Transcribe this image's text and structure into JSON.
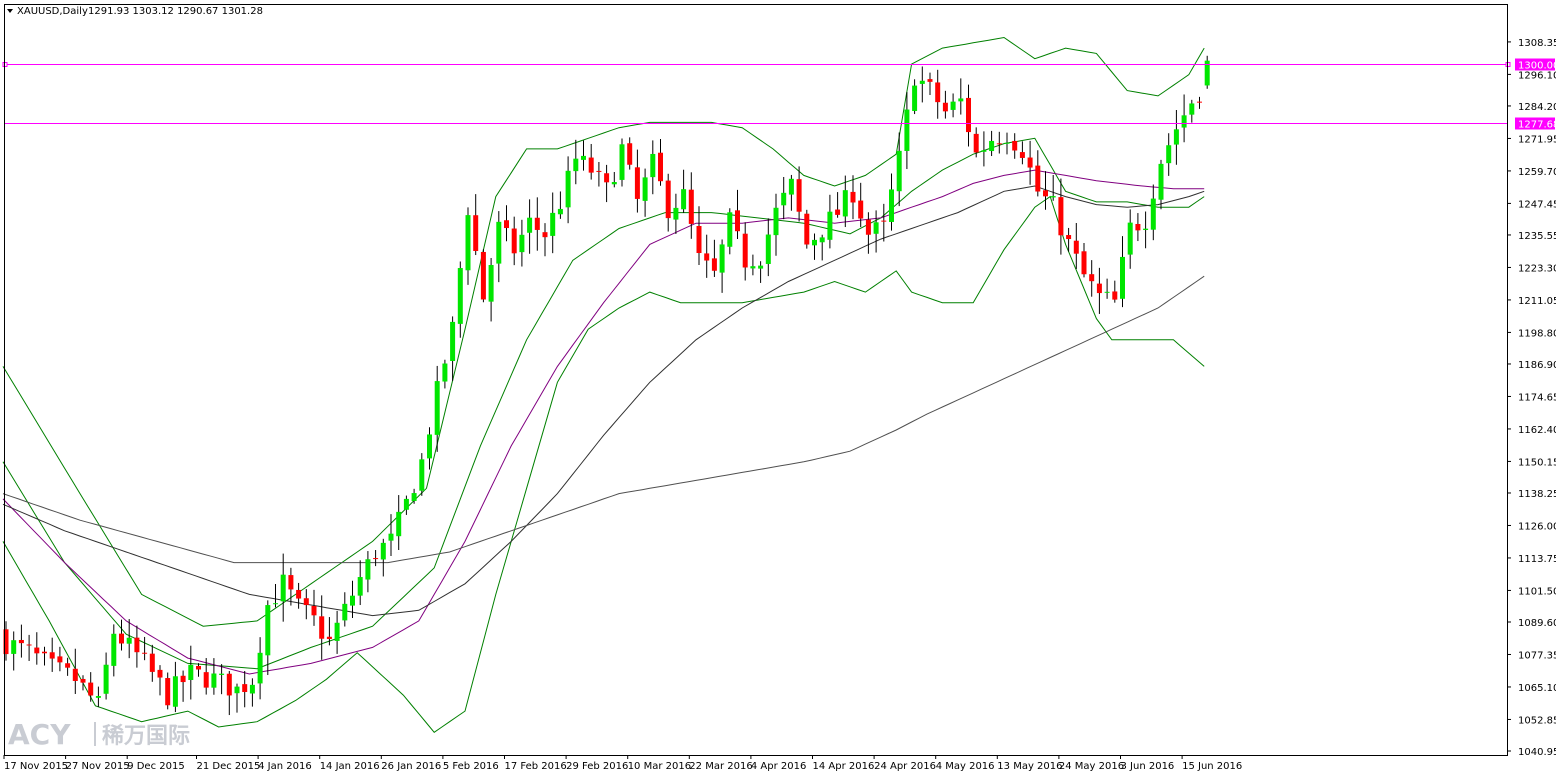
{
  "header": {
    "symbol": "XAUUSD,Daily",
    "ohlc": "1291.93 1303.12 1290.67 1301.28"
  },
  "watermark": {
    "latin": "ACY",
    "cjk": "稀万国际"
  },
  "colors": {
    "bull": "#00e600",
    "bear": "#ff0000",
    "level": "#ff00ff",
    "bollinger": "#008000",
    "ma_magenta": "#800080",
    "ma_dark": "#303030",
    "ma_gray": "#505050"
  },
  "chart_data": {
    "type": "candlestick",
    "symbol": "XAUUSD",
    "timeframe": "Daily",
    "ylim": [
      1040.95,
      1314.35
    ],
    "y_ticks": [
      "1308.35",
      "1296.10",
      "1284.20",
      "1271.95",
      "1259.70",
      "1247.45",
      "1235.55",
      "1223.30",
      "1211.05",
      "1198.80",
      "1186.90",
      "1174.65",
      "1162.40",
      "1150.15",
      "1138.25",
      "1126.00",
      "1113.75",
      "1101.50",
      "1089.60",
      "1077.35",
      "1065.10",
      "1052.85",
      "1040.95"
    ],
    "x_labels": [
      {
        "index": 0,
        "label": "17 Nov 2015"
      },
      {
        "index": 8,
        "label": "27 Nov 2015"
      },
      {
        "index": 16,
        "label": "9 Dec 2015"
      },
      {
        "index": 25,
        "label": "21 Dec 2015"
      },
      {
        "index": 33,
        "label": "4 Jan 2016"
      },
      {
        "index": 41,
        "label": "14 Jan 2016"
      },
      {
        "index": 49,
        "label": "26 Jan 2016"
      },
      {
        "index": 57,
        "label": "5 Feb 2016"
      },
      {
        "index": 65,
        "label": "17 Feb 2016"
      },
      {
        "index": 73,
        "label": "29 Feb 2016"
      },
      {
        "index": 81,
        "label": "10 Mar 2016"
      },
      {
        "index": 89,
        "label": "22 Mar 2016"
      },
      {
        "index": 97,
        "label": "4 Apr 2016"
      },
      {
        "index": 105,
        "label": "14 Apr 2016"
      },
      {
        "index": 113,
        "label": "24 Apr 2016"
      },
      {
        "index": 121,
        "label": "4 May 2016"
      },
      {
        "index": 129,
        "label": "13 May 2016"
      },
      {
        "index": 137,
        "label": "24 May 2016"
      },
      {
        "index": 145,
        "label": "3 Jun 2016"
      },
      {
        "index": 153,
        "label": "15 Jun 2016"
      }
    ],
    "levels": [
      {
        "value": 1300.0,
        "label": "1300.00"
      },
      {
        "value": 1277.68,
        "label": "1277.68"
      }
    ],
    "anchors": {
      "close": [
        [
          0,
          1082
        ],
        [
          3,
          1078
        ],
        [
          6,
          1072
        ],
        [
          9,
          1068
        ],
        [
          12,
          1058
        ],
        [
          14,
          1086
        ],
        [
          18,
          1074
        ],
        [
          21,
          1062
        ],
        [
          24,
          1070
        ],
        [
          27,
          1068
        ],
        [
          30,
          1064
        ],
        [
          32,
          1068
        ],
        [
          34,
          1096
        ],
        [
          36,
          1104
        ],
        [
          38,
          1095
        ],
        [
          40,
          1090
        ],
        [
          42,
          1082
        ],
        [
          44,
          1094
        ],
        [
          46,
          1106
        ],
        [
          48,
          1116
        ],
        [
          50,
          1120
        ],
        [
          52,
          1134
        ],
        [
          54,
          1150
        ],
        [
          56,
          1176
        ],
        [
          58,
          1200
        ],
        [
          60,
          1246
        ],
        [
          62,
          1212
        ],
        [
          64,
          1238
        ],
        [
          66,
          1230
        ],
        [
          68,
          1240
        ],
        [
          70,
          1236
        ],
        [
          72,
          1248
        ],
        [
          74,
          1264
        ],
        [
          76,
          1260
        ],
        [
          78,
          1252
        ],
        [
          80,
          1268
        ],
        [
          82,
          1248
        ],
        [
          84,
          1262
        ],
        [
          86,
          1246
        ],
        [
          88,
          1250
        ],
        [
          90,
          1226
        ],
        [
          92,
          1220
        ],
        [
          94,
          1240
        ],
        [
          96,
          1226
        ],
        [
          98,
          1228
        ],
        [
          100,
          1244
        ],
        [
          102,
          1254
        ],
        [
          104,
          1232
        ],
        [
          106,
          1238
        ],
        [
          108,
          1244
        ],
        [
          110,
          1252
        ],
        [
          112,
          1236
        ],
        [
          114,
          1238
        ],
        [
          116,
          1264
        ],
        [
          118,
          1296
        ],
        [
          120,
          1290
        ],
        [
          122,
          1282
        ],
        [
          124,
          1286
        ],
        [
          126,
          1266
        ],
        [
          128,
          1272
        ],
        [
          130,
          1274
        ],
        [
          132,
          1268
        ],
        [
          134,
          1252
        ],
        [
          136,
          1246
        ],
        [
          138,
          1232
        ],
        [
          140,
          1220
        ],
        [
          142,
          1212
        ],
        [
          144,
          1210
        ],
        [
          146,
          1238
        ],
        [
          148,
          1242
        ],
        [
          150,
          1264
        ],
        [
          152,
          1276
        ],
        [
          154,
          1286
        ],
        [
          155,
          1290
        ],
        [
          156,
          1301
        ]
      ],
      "bb_upper": [
        [
          0,
          1186
        ],
        [
          10,
          1138
        ],
        [
          18,
          1100
        ],
        [
          26,
          1088
        ],
        [
          33,
          1090
        ],
        [
          40,
          1104
        ],
        [
          48,
          1120
        ],
        [
          55,
          1140
        ],
        [
          60,
          1200
        ],
        [
          64,
          1250
        ],
        [
          68,
          1268
        ],
        [
          72,
          1268
        ],
        [
          76,
          1272
        ],
        [
          80,
          1276
        ],
        [
          84,
          1278
        ],
        [
          88,
          1278
        ],
        [
          92,
          1278
        ],
        [
          96,
          1276
        ],
        [
          100,
          1268
        ],
        [
          104,
          1258
        ],
        [
          108,
          1254
        ],
        [
          112,
          1258
        ],
        [
          116,
          1266
        ],
        [
          118,
          1300
        ],
        [
          122,
          1306
        ],
        [
          126,
          1308
        ],
        [
          130,
          1310
        ],
        [
          134,
          1302
        ],
        [
          138,
          1306
        ],
        [
          142,
          1304
        ],
        [
          146,
          1290
        ],
        [
          150,
          1288
        ],
        [
          154,
          1296
        ],
        [
          156,
          1306
        ]
      ],
      "bb_lower": [
        [
          0,
          1120
        ],
        [
          6,
          1090
        ],
        [
          12,
          1058
        ],
        [
          18,
          1052
        ],
        [
          24,
          1056
        ],
        [
          28,
          1050
        ],
        [
          33,
          1052
        ],
        [
          38,
          1060
        ],
        [
          42,
          1068
        ],
        [
          46,
          1078
        ],
        [
          52,
          1062
        ],
        [
          56,
          1048
        ],
        [
          60,
          1056
        ],
        [
          64,
          1100
        ],
        [
          68,
          1140
        ],
        [
          72,
          1180
        ],
        [
          76,
          1200
        ],
        [
          80,
          1208
        ],
        [
          84,
          1214
        ],
        [
          88,
          1210
        ],
        [
          92,
          1210
        ],
        [
          96,
          1210
        ],
        [
          100,
          1212
        ],
        [
          104,
          1214
        ],
        [
          108,
          1218
        ],
        [
          112,
          1214
        ],
        [
          116,
          1222
        ],
        [
          118,
          1214
        ],
        [
          122,
          1210
        ],
        [
          126,
          1210
        ],
        [
          130,
          1230
        ],
        [
          134,
          1246
        ],
        [
          136,
          1250
        ],
        [
          138,
          1232
        ],
        [
          142,
          1204
        ],
        [
          144,
          1196
        ],
        [
          148,
          1196
        ],
        [
          152,
          1196
        ],
        [
          156,
          1186
        ]
      ],
      "bb_middle": [
        [
          0,
          1150
        ],
        [
          8,
          1112
        ],
        [
          16,
          1085
        ],
        [
          24,
          1074
        ],
        [
          33,
          1072
        ],
        [
          40,
          1080
        ],
        [
          48,
          1088
        ],
        [
          56,
          1110
        ],
        [
          62,
          1156
        ],
        [
          68,
          1196
        ],
        [
          74,
          1226
        ],
        [
          80,
          1238
        ],
        [
          86,
          1244
        ],
        [
          92,
          1244
        ],
        [
          98,
          1242
        ],
        [
          104,
          1240
        ],
        [
          110,
          1236
        ],
        [
          114,
          1242
        ],
        [
          118,
          1252
        ],
        [
          122,
          1260
        ],
        [
          126,
          1266
        ],
        [
          130,
          1270
        ],
        [
          134,
          1272
        ],
        [
          138,
          1252
        ],
        [
          142,
          1248
        ],
        [
          146,
          1248
        ],
        [
          150,
          1246
        ],
        [
          154,
          1246
        ],
        [
          156,
          1250
        ]
      ],
      "ma_magenta": [
        [
          0,
          1136
        ],
        [
          8,
          1112
        ],
        [
          16,
          1090
        ],
        [
          24,
          1076
        ],
        [
          32,
          1070
        ],
        [
          40,
          1074
        ],
        [
          48,
          1080
        ],
        [
          54,
          1090
        ],
        [
          60,
          1120
        ],
        [
          66,
          1156
        ],
        [
          72,
          1186
        ],
        [
          78,
          1210
        ],
        [
          84,
          1232
        ],
        [
          90,
          1240
        ],
        [
          96,
          1240
        ],
        [
          102,
          1242
        ],
        [
          108,
          1240
        ],
        [
          114,
          1242
        ],
        [
          118,
          1246
        ],
        [
          122,
          1250
        ],
        [
          126,
          1255
        ],
        [
          130,
          1258
        ],
        [
          134,
          1260
        ],
        [
          138,
          1258
        ],
        [
          142,
          1256
        ],
        [
          148,
          1254
        ],
        [
          152,
          1253
        ],
        [
          156,
          1253
        ]
      ],
      "ma_dark": [
        [
          0,
          1134
        ],
        [
          8,
          1124
        ],
        [
          16,
          1116
        ],
        [
          24,
          1108
        ],
        [
          32,
          1100
        ],
        [
          40,
          1096
        ],
        [
          48,
          1092
        ],
        [
          54,
          1094
        ],
        [
          60,
          1104
        ],
        [
          66,
          1120
        ],
        [
          72,
          1138
        ],
        [
          78,
          1160
        ],
        [
          84,
          1180
        ],
        [
          90,
          1196
        ],
        [
          96,
          1208
        ],
        [
          102,
          1218
        ],
        [
          108,
          1226
        ],
        [
          114,
          1234
        ],
        [
          118,
          1238
        ],
        [
          124,
          1244
        ],
        [
          130,
          1252
        ],
        [
          134,
          1254
        ],
        [
          138,
          1250
        ],
        [
          142,
          1247
        ],
        [
          146,
          1246
        ],
        [
          150,
          1247
        ],
        [
          154,
          1250
        ],
        [
          156,
          1252
        ]
      ],
      "ma_gray": [
        [
          0,
          1138
        ],
        [
          10,
          1128
        ],
        [
          20,
          1120
        ],
        [
          30,
          1112
        ],
        [
          33,
          1112
        ],
        [
          40,
          1112
        ],
        [
          50,
          1112
        ],
        [
          58,
          1116
        ],
        [
          66,
          1124
        ],
        [
          74,
          1132
        ],
        [
          80,
          1138
        ],
        [
          88,
          1142
        ],
        [
          96,
          1146
        ],
        [
          104,
          1150
        ],
        [
          110,
          1154
        ],
        [
          116,
          1162
        ],
        [
          120,
          1168
        ],
        [
          126,
          1176
        ],
        [
          132,
          1184
        ],
        [
          138,
          1192
        ],
        [
          144,
          1200
        ],
        [
          150,
          1208
        ],
        [
          156,
          1220
        ]
      ]
    }
  }
}
